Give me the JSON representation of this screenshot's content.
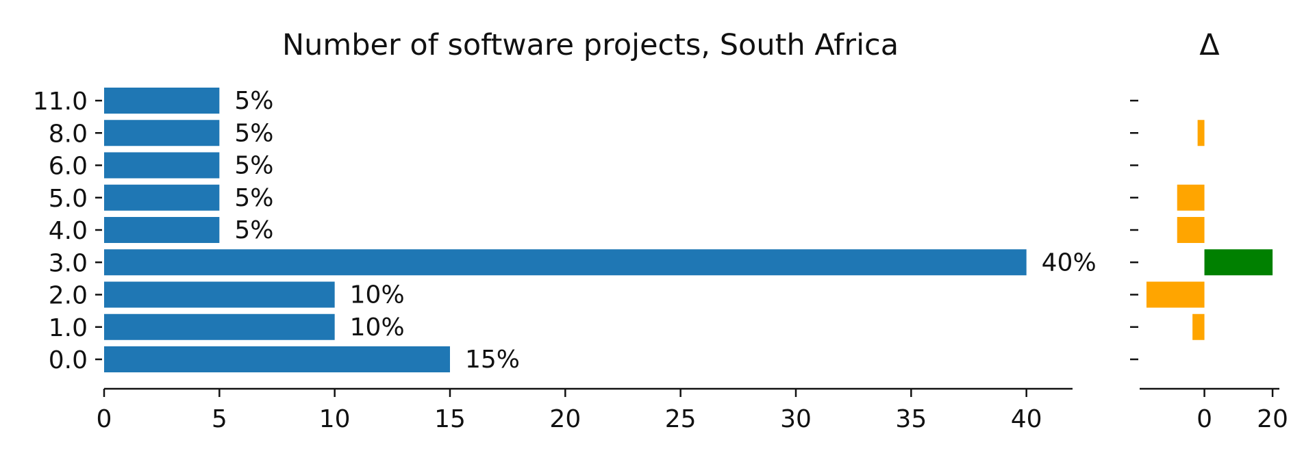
{
  "chart_data": [
    {
      "type": "bar",
      "orientation": "horizontal",
      "title": "Number of software projects, South Africa",
      "categories": [
        "11.0",
        "8.0",
        "6.0",
        "5.0",
        "4.0",
        "3.0",
        "2.0",
        "1.0",
        "0.0"
      ],
      "values": [
        5,
        5,
        5,
        5,
        5,
        40,
        10,
        10,
        15
      ],
      "value_labels": [
        "5%",
        "5%",
        "5%",
        "5%",
        "5%",
        "40%",
        "10%",
        "10%",
        "15%"
      ],
      "xlim": [
        0,
        42
      ],
      "xticks": [
        0,
        5,
        10,
        15,
        20,
        25,
        30,
        35,
        40
      ],
      "xtick_labels": [
        "0",
        "5",
        "10",
        "15",
        "20",
        "25",
        "30",
        "35",
        "40"
      ],
      "color": "#1f77b4",
      "grid": false
    },
    {
      "type": "bar",
      "orientation": "horizontal",
      "title": "Δ",
      "categories": [
        "11.0",
        "8.0",
        "6.0",
        "5.0",
        "4.0",
        "3.0",
        "2.0",
        "1.0",
        "0.0"
      ],
      "values": [
        0,
        -2,
        0,
        -8,
        -8,
        20,
        -17,
        -3.5,
        0
      ],
      "xlim": [
        -19,
        22
      ],
      "xticks": [
        0,
        20
      ],
      "xtick_labels": [
        "0",
        "20"
      ],
      "positive_color": "#008000",
      "negative_color": "#ffa500",
      "grid": false
    }
  ]
}
